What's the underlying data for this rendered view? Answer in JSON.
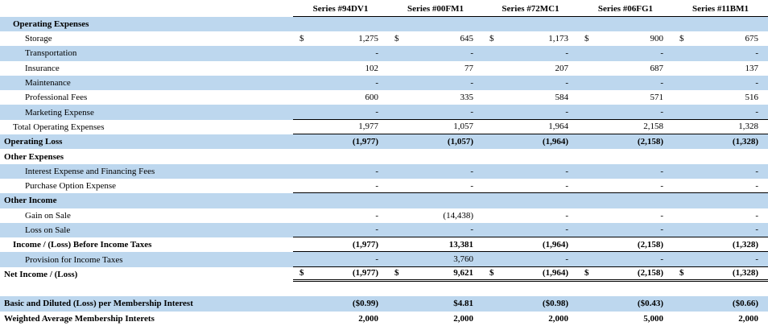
{
  "colors": {
    "band_blue": "#BDD7EE",
    "rule_black": "#000000",
    "text": "#000000",
    "background": "#FFFFFF"
  },
  "table": {
    "columns": [
      "Series #94DV1",
      "Series #00FM1",
      "Series #72MC1",
      "Series #06FG1",
      "Series #11BM1"
    ],
    "rows": [
      {
        "label": "Operating Expenses",
        "indent": 1,
        "bold": true,
        "shade": true,
        "dollar_sign": "",
        "rule": "",
        "values": [
          "",
          "",
          "",
          "",
          ""
        ]
      },
      {
        "label": "Storage",
        "indent": 2,
        "bold": false,
        "shade": false,
        "dollar_sign": "$",
        "rule": "",
        "values": [
          "1,275",
          "645",
          "1,173",
          "900",
          "675"
        ]
      },
      {
        "label": "Transportation",
        "indent": 2,
        "bold": false,
        "shade": true,
        "dollar_sign": "",
        "rule": "",
        "values": [
          "-",
          "-",
          "-",
          "-",
          "-"
        ]
      },
      {
        "label": "Insurance",
        "indent": 2,
        "bold": false,
        "shade": false,
        "dollar_sign": "",
        "rule": "",
        "values": [
          "102",
          "77",
          "207",
          "687",
          "137"
        ]
      },
      {
        "label": "Maintenance",
        "indent": 2,
        "bold": false,
        "shade": true,
        "dollar_sign": "",
        "rule": "",
        "values": [
          "-",
          "-",
          "-",
          "-",
          "-"
        ]
      },
      {
        "label": "Professional Fees",
        "indent": 2,
        "bold": false,
        "shade": false,
        "dollar_sign": "",
        "rule": "",
        "values": [
          "600",
          "335",
          "584",
          "571",
          "516"
        ]
      },
      {
        "label": "Marketing Expense",
        "indent": 2,
        "bold": false,
        "shade": true,
        "dollar_sign": "",
        "rule": "bottom",
        "values": [
          "-",
          "-",
          "-",
          "-",
          "-"
        ]
      },
      {
        "label": "Total Operating Expenses",
        "indent": 1,
        "bold": false,
        "shade": false,
        "dollar_sign": "",
        "rule": "bottom",
        "values": [
          "1,977",
          "1,057",
          "1,964",
          "2,158",
          "1,328"
        ]
      },
      {
        "label": "Operating Loss",
        "indent": 0,
        "bold": true,
        "shade": true,
        "dollar_sign": "",
        "rule": "",
        "values": [
          "(1,977)",
          "(1,057)",
          "(1,964)",
          "(2,158)",
          "(1,328)"
        ]
      },
      {
        "label": "Other Expenses",
        "indent": 0,
        "bold": true,
        "shade": false,
        "dollar_sign": "",
        "rule": "",
        "values": [
          "",
          "",
          "",
          "",
          ""
        ]
      },
      {
        "label": "Interest Expense and Financing Fees",
        "indent": 2,
        "bold": false,
        "shade": true,
        "dollar_sign": "",
        "rule": "",
        "values": [
          "-",
          "-",
          "-",
          "-",
          "-"
        ]
      },
      {
        "label": "Purchase Option Expense",
        "indent": 2,
        "bold": false,
        "shade": false,
        "dollar_sign": "",
        "rule": "bottom",
        "values": [
          "-",
          "-",
          "-",
          "-",
          "-"
        ]
      },
      {
        "label": "Other Income",
        "indent": 0,
        "bold": true,
        "shade": true,
        "dollar_sign": "",
        "rule": "",
        "values": [
          "",
          "",
          "",
          "",
          ""
        ]
      },
      {
        "label": "Gain on Sale",
        "indent": 2,
        "bold": false,
        "shade": false,
        "dollar_sign": "",
        "rule": "",
        "values": [
          "-",
          "(14,438)",
          "-",
          "-",
          "-"
        ]
      },
      {
        "label": "Loss on Sale",
        "indent": 2,
        "bold": false,
        "shade": true,
        "dollar_sign": "",
        "rule": "bottom",
        "values": [
          "-",
          "-",
          "-",
          "-",
          "-"
        ]
      },
      {
        "label": "Income / (Loss) Before Income Taxes",
        "indent": 1,
        "bold": true,
        "shade": false,
        "dollar_sign": "",
        "rule": "bottom",
        "values": [
          "(1,977)",
          "13,381",
          "(1,964)",
          "(2,158)",
          "(1,328)"
        ]
      },
      {
        "label": "Provision for Income Taxes",
        "indent": 2,
        "bold": false,
        "shade": true,
        "dollar_sign": "",
        "rule": "bottom",
        "values": [
          "-",
          "3,760",
          "-",
          "-",
          "-"
        ]
      },
      {
        "label": "Net Income / (Loss)",
        "indent": 0,
        "bold": true,
        "shade": false,
        "dollar_sign": "$",
        "rule": "double",
        "values": [
          "(1,977)",
          "9,621",
          "(1,964)",
          "(2,158)",
          "(1,328)"
        ]
      },
      {
        "label": "",
        "indent": 0,
        "bold": false,
        "shade": false,
        "dollar_sign": "",
        "rule": "",
        "values": [
          "",
          "",
          "",
          "",
          ""
        ]
      },
      {
        "label": "Basic and Diluted (Loss) per Membership Interest",
        "indent": 0,
        "bold": true,
        "shade": true,
        "dollar_sign": "",
        "rule": "",
        "values": [
          "($0.99)",
          "$4.81",
          "($0.98)",
          "($0.43)",
          "($0.66)"
        ]
      },
      {
        "label": "Weighted Average Membership Interets",
        "indent": 0,
        "bold": true,
        "shade": false,
        "dollar_sign": "",
        "rule": "",
        "values": [
          "2,000",
          "2,000",
          "2,000",
          "5,000",
          "2,000"
        ]
      }
    ]
  }
}
